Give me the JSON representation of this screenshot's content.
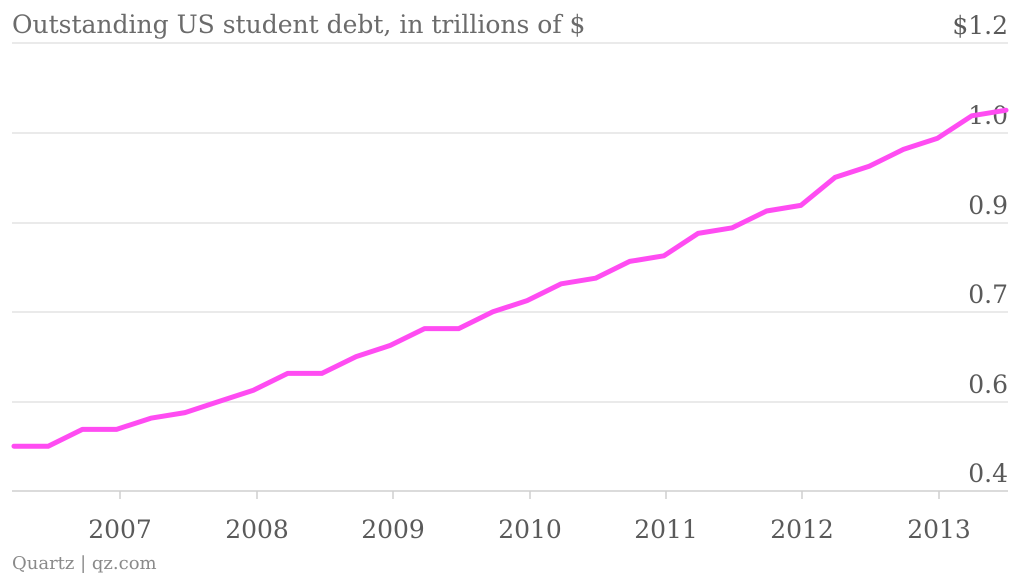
{
  "chart_data": {
    "type": "line",
    "title": "Outstanding US student debt, in trillions of $",
    "source": "Quartz | qz.com",
    "xlabel": "",
    "ylabel": "",
    "y_tick_labels": [
      "$1.2",
      "1.0",
      "0.9",
      "0.7",
      "0.6",
      "0.4"
    ],
    "x_tick_labels": [
      "2007",
      "2008",
      "2009",
      "2010",
      "2011",
      "2012",
      "2013"
    ],
    "grid": true,
    "line_color": "#ff4cf2",
    "series": [
      {
        "x": [
          "2006 Q1",
          "2006 Q2",
          "2006 Q3",
          "2006 Q4",
          "2007 Q1",
          "2007 Q2",
          "2007 Q3",
          "2007 Q4",
          "2008 Q1",
          "2008 Q2",
          "2008 Q3",
          "2008 Q4",
          "2009 Q1",
          "2009 Q2",
          "2009 Q3",
          "2009 Q4",
          "2010 Q1",
          "2010 Q2",
          "2010 Q3",
          "2010 Q4",
          "2011 Q1",
          "2011 Q2",
          "2011 Q3",
          "2011 Q4",
          "2012 Q1",
          "2012 Q2",
          "2012 Q3",
          "2012 Q4",
          "2013 Q1",
          "2013 Q2"
        ],
        "values": [
          0.48,
          0.48,
          0.51,
          0.51,
          0.53,
          0.54,
          0.56,
          0.58,
          0.61,
          0.61,
          0.64,
          0.66,
          0.69,
          0.69,
          0.72,
          0.74,
          0.77,
          0.78,
          0.81,
          0.82,
          0.86,
          0.87,
          0.9,
          0.91,
          0.96,
          0.98,
          1.01,
          1.03,
          1.07,
          1.08
        ]
      }
    ]
  }
}
